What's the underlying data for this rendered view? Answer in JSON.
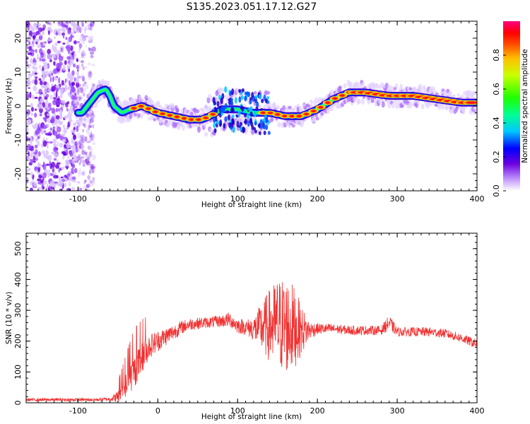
{
  "figure": {
    "title": "S135.2023.051.17.12.G27"
  },
  "chart_data": [
    {
      "type": "heatmap",
      "description_of_panel": "spectrogram",
      "xlabel": "Height of straight line (km)",
      "ylabel": "Frequency (Hz)",
      "xlim": [
        -165,
        400
      ],
      "ylim": [
        -25,
        25
      ],
      "xticks": [
        -100,
        0,
        100,
        200,
        300,
        400
      ],
      "yticks": [
        -20,
        -10,
        0,
        10,
        20
      ],
      "colorbar": {
        "label": "Normalized spectral amplitude",
        "range": [
          0,
          1
        ],
        "ticks": [
          0.0,
          0.2,
          0.4,
          0.6,
          0.8
        ],
        "tick_labels": [
          "0.0",
          "0.2",
          "0.4",
          "0.6",
          "0.8"
        ]
      },
      "ridge": {
        "name": "dominant frequency",
        "x": [
          -95,
          -85,
          -75,
          -65,
          -60,
          -55,
          -45,
          -35,
          -20,
          -10,
          0,
          20,
          40,
          55,
          65,
          80,
          100,
          120,
          140,
          160,
          180,
          200,
          220,
          240,
          260,
          290,
          320,
          350,
          380,
          400
        ],
        "y": [
          -2,
          1,
          4,
          5,
          3,
          0,
          -2,
          -1,
          0,
          -1,
          -2,
          -3,
          -4,
          -4,
          -3,
          -1,
          -1,
          -2,
          -2,
          -3,
          -3,
          -1,
          2,
          4,
          4,
          3,
          3,
          2,
          1,
          1
        ]
      }
    },
    {
      "type": "line",
      "xlabel": "Height of straight line (km)",
      "ylabel": "SNR (10 * v/v)",
      "xlim": [
        -165,
        400
      ],
      "ylim": [
        0,
        550
      ],
      "xticks": [
        -100,
        0,
        100,
        200,
        300,
        400
      ],
      "yticks": [
        0,
        100,
        200,
        300,
        400,
        500
      ],
      "color": "#f03030",
      "series": [
        {
          "x": [
            -165,
            -120,
            -80,
            -60,
            -50,
            -40,
            -30,
            -20,
            -10,
            0,
            10,
            20,
            30,
            40,
            60,
            80,
            90,
            100,
            110,
            120,
            130,
            140,
            150,
            160,
            170,
            180,
            190,
            200,
            220,
            240,
            260,
            280,
            290,
            300,
            320,
            340,
            360,
            380,
            400
          ],
          "values": [
            10,
            10,
            10,
            12,
            20,
            55,
            100,
            145,
            185,
            200,
            215,
            230,
            245,
            255,
            260,
            265,
            270,
            250,
            245,
            240,
            245,
            250,
            255,
            250,
            245,
            235,
            235,
            240,
            240,
            235,
            235,
            235,
            260,
            230,
            230,
            230,
            225,
            210,
            190
          ],
          "noise": [
            5,
            5,
            5,
            6,
            20,
            40,
            55,
            50,
            40,
            35,
            30,
            25,
            22,
            20,
            18,
            20,
            25,
            25,
            25,
            40,
            80,
            120,
            150,
            160,
            140,
            80,
            30,
            18,
            16,
            15,
            15,
            15,
            25,
            15,
            15,
            15,
            15,
            15,
            15
          ]
        }
      ]
    }
  ]
}
